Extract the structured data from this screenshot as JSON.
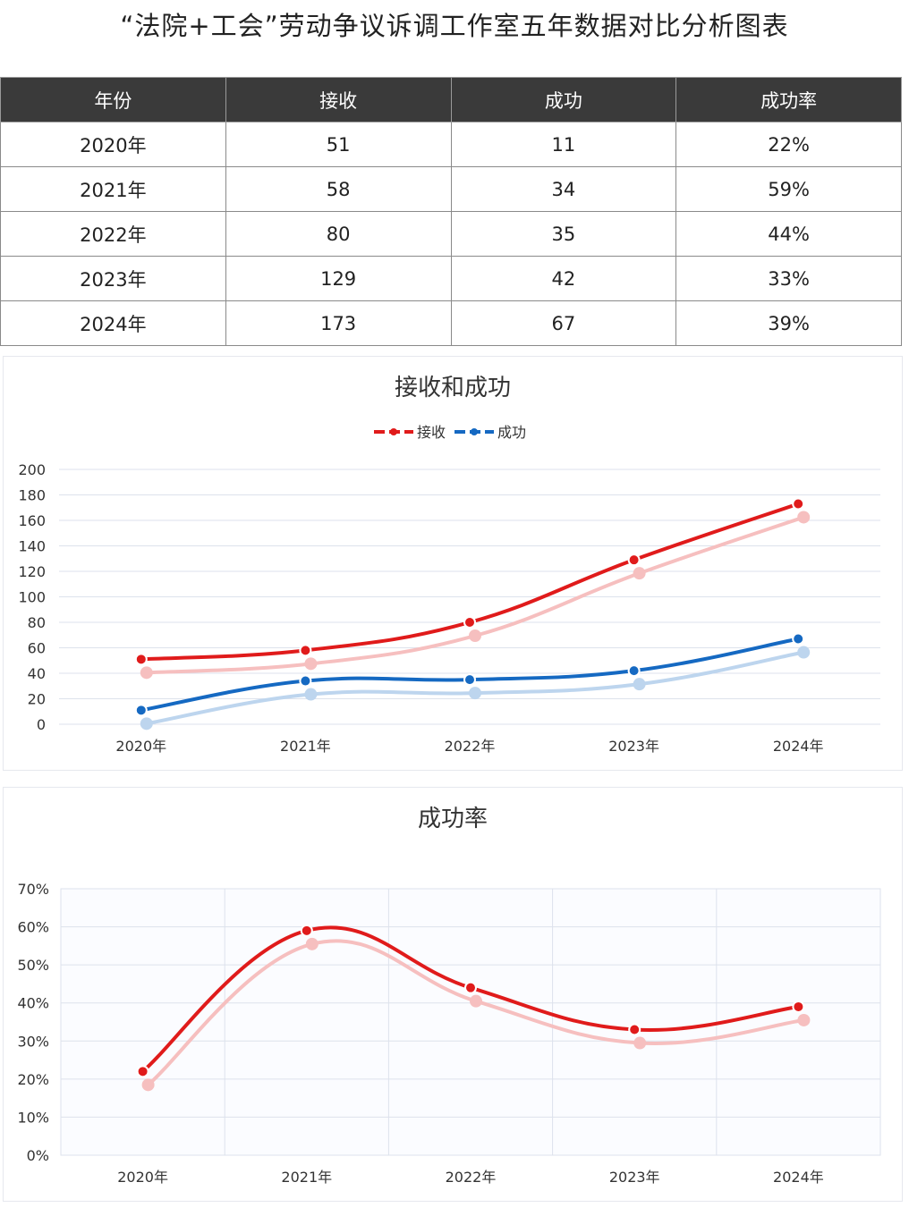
{
  "page": {
    "title": "“法院+工会”劳动争议诉调工作室五年数据对比分析图表"
  },
  "table": {
    "headers": [
      "年份",
      "接收",
      "成功",
      "成功率"
    ],
    "rows": [
      [
        "2020年",
        "51",
        "11",
        "22%"
      ],
      [
        "2021年",
        "58",
        "34",
        "59%"
      ],
      [
        "2022年",
        "80",
        "35",
        "44%"
      ],
      [
        "2023年",
        "129",
        "42",
        "33%"
      ],
      [
        "2024年",
        "173",
        "67",
        "39%"
      ]
    ]
  },
  "chart_data": [
    {
      "type": "line",
      "title": "接收和成功",
      "categories": [
        "2020年",
        "2021年",
        "2022年",
        "2023年",
        "2024年"
      ],
      "series": [
        {
          "name": "接收",
          "values": [
            51,
            58,
            80,
            129,
            173
          ],
          "color": "#e01b1b"
        },
        {
          "name": "成功",
          "values": [
            11,
            34,
            35,
            42,
            67
          ],
          "color": "#1569c2"
        }
      ],
      "ylim": [
        0,
        200
      ],
      "yticks": [
        "0",
        "20",
        "40",
        "60",
        "80",
        "100",
        "120",
        "140",
        "160",
        "180",
        "200"
      ],
      "grid": "horizontal",
      "legend_position": "top-center",
      "smooth": true
    },
    {
      "type": "line",
      "title": "成功率",
      "categories": [
        "2020年",
        "2021年",
        "2022年",
        "2023年",
        "2024年"
      ],
      "series": [
        {
          "values": [
            22,
            59,
            44,
            33,
            39
          ],
          "color": "#e01b1b"
        }
      ],
      "ylim": [
        0,
        70
      ],
      "yticks": [
        "0%",
        "10%",
        "20%",
        "30%",
        "40%",
        "50%",
        "60%",
        "70%"
      ],
      "grid": "both",
      "smooth": true
    }
  ]
}
